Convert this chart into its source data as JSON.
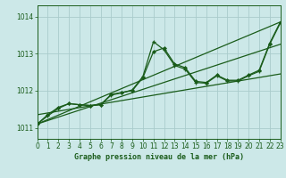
{
  "bg_color": "#cce8e8",
  "grid_color": "#aacccc",
  "line_color": "#1a5c1a",
  "title": "Graphe pression niveau de la mer (hPa)",
  "xlim": [
    0,
    23
  ],
  "ylim": [
    1010.7,
    1014.3
  ],
  "yticks": [
    1011,
    1012,
    1013,
    1014
  ],
  "xticks": [
    0,
    1,
    2,
    3,
    4,
    5,
    6,
    7,
    8,
    9,
    10,
    11,
    12,
    13,
    14,
    15,
    16,
    17,
    18,
    19,
    20,
    21,
    22,
    23
  ],
  "series1_x": [
    0,
    1,
    2,
    3,
    4,
    5,
    6,
    7,
    8,
    9,
    10,
    11,
    12,
    13,
    14,
    15,
    16,
    17,
    18,
    19,
    20,
    21,
    22,
    23
  ],
  "series1_y": [
    1011.1,
    1011.35,
    1011.55,
    1011.65,
    1011.62,
    1011.6,
    1011.62,
    1011.9,
    1011.95,
    1012.0,
    1012.35,
    1013.05,
    1013.15,
    1012.72,
    1012.62,
    1012.25,
    1012.22,
    1012.42,
    1012.28,
    1012.28,
    1012.42,
    1012.55,
    1013.28,
    1013.85
  ],
  "series2_x": [
    0,
    1,
    2,
    3,
    4,
    5,
    6,
    7,
    8,
    9,
    10,
    11,
    12,
    13,
    14,
    15,
    16,
    17,
    18,
    19,
    20,
    21,
    22,
    23
  ],
  "series2_y": [
    1011.1,
    1011.32,
    1011.52,
    1011.65,
    1011.62,
    1011.6,
    1011.62,
    1011.88,
    1011.94,
    1012.02,
    1012.38,
    1013.32,
    1013.1,
    1012.68,
    1012.58,
    1012.22,
    1012.2,
    1012.4,
    1012.26,
    1012.26,
    1012.4,
    1012.52,
    1013.25,
    1013.82
  ],
  "trend1_x": [
    0,
    23
  ],
  "trend1_y": [
    1011.1,
    1013.85
  ],
  "trend2_x": [
    0,
    23
  ],
  "trend2_y": [
    1011.35,
    1012.45
  ],
  "trend3_x": [
    0,
    23
  ],
  "trend3_y": [
    1011.1,
    1013.25
  ]
}
